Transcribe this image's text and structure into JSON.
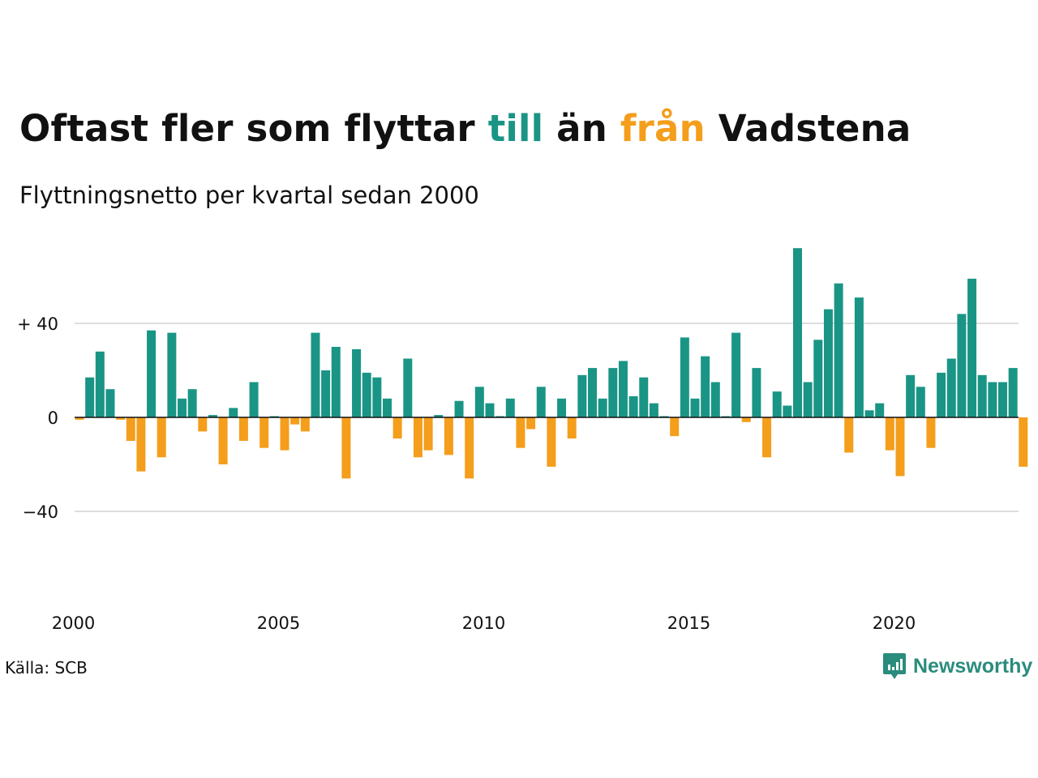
{
  "title": {
    "part1": "Oftast fler som flyttar ",
    "till": "till",
    "part2": " än ",
    "fran": "från",
    "part3": " Vadstena"
  },
  "subtitle": "Flyttningsnetto per kvartal sedan 2000",
  "source": "Källa: SCB",
  "logo": {
    "text": "Newsworthy",
    "icon": "newsworthy-logo-icon"
  },
  "colors": {
    "positive": "#1a9585",
    "negative": "#f49e1c",
    "brand": "#2a8c7c",
    "grid": "#dddddd"
  },
  "chart_data": {
    "type": "bar",
    "x_start": "2000 Q1",
    "x_ticks": [
      "2000",
      "2005",
      "2010",
      "2015",
      "2020"
    ],
    "y_ticks": [
      {
        "value": 40,
        "label": "+ 40"
      },
      {
        "value": 0,
        "label": "0"
      },
      {
        "value": -40,
        "label": "−40"
      }
    ],
    "ylim": [
      -70,
      72
    ],
    "grid": true,
    "values": [
      -1,
      17,
      28,
      12,
      -1,
      -10,
      -23,
      37,
      -17,
      36,
      8,
      12,
      -6,
      1,
      -20,
      4,
      -10,
      15,
      -13,
      0,
      -14,
      -3,
      -6,
      36,
      20,
      30,
      -26,
      29,
      19,
      17,
      8,
      -9,
      25,
      -17,
      -14,
      1,
      -16,
      7,
      -26,
      13,
      6,
      0,
      8,
      -13,
      -5,
      13,
      -21,
      8,
      -9,
      18,
      21,
      8,
      21,
      24,
      9,
      17,
      6,
      0,
      -8,
      34,
      8,
      26,
      15,
      0,
      36,
      -2,
      21,
      -17,
      11,
      5,
      72,
      15,
      33,
      46,
      57,
      -15,
      51,
      3,
      6,
      -14,
      -25,
      18,
      13,
      -13,
      19,
      25,
      44,
      59,
      18,
      15,
      15,
      21,
      -21
    ]
  }
}
